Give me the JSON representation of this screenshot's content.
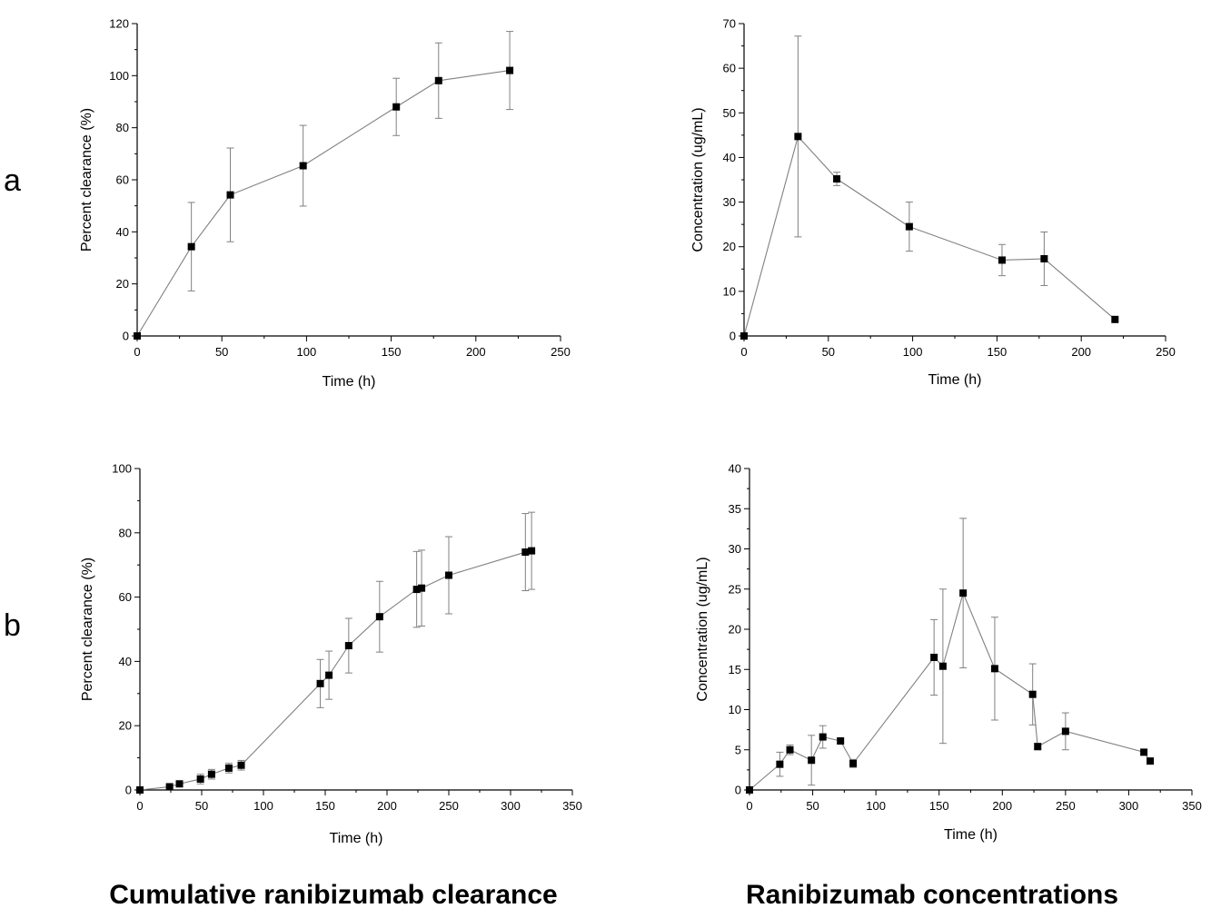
{
  "row_labels": [
    "a",
    "b"
  ],
  "captions": {
    "left": "Cumulative ranibizumab clearance",
    "right": "Ranibizumab concentrations"
  },
  "colors": {
    "line": "#808080",
    "marker": "#000000",
    "axis": "#000000"
  },
  "chart_data": [
    {
      "type": "line",
      "xlabel": "Time (h)",
      "ylabel": "Percent clearance (%)",
      "xlim": [
        0,
        250
      ],
      "ylim": [
        0,
        120
      ],
      "xticks": [
        0,
        50,
        100,
        150,
        200,
        250
      ],
      "yticks": [
        0,
        20,
        40,
        60,
        80,
        100,
        120
      ],
      "grid": false,
      "x": [
        0,
        32,
        55,
        98,
        153,
        178,
        220
      ],
      "y": [
        0,
        34.3,
        54.2,
        65.4,
        88.0,
        98.1,
        102.0
      ],
      "err": [
        0,
        17,
        18,
        15.5,
        11,
        14.5,
        15
      ]
    },
    {
      "type": "line",
      "xlabel": "Time (h)",
      "ylabel": "Concentration (ug/mL)",
      "xlim": [
        0,
        250
      ],
      "ylim": [
        0,
        70
      ],
      "xticks": [
        0,
        50,
        100,
        150,
        200,
        250
      ],
      "yticks": [
        0,
        10,
        20,
        30,
        40,
        50,
        60,
        70
      ],
      "grid": false,
      "x": [
        0,
        32,
        55,
        98,
        153,
        178,
        220
      ],
      "y": [
        0,
        44.7,
        35.2,
        24.5,
        17.0,
        17.3,
        3.7
      ],
      "err": [
        0,
        22.5,
        1.5,
        5.5,
        3.5,
        6,
        0
      ]
    },
    {
      "type": "line",
      "xlabel": "Time (h)",
      "ylabel": "Percent clearance (%)",
      "xlim": [
        0,
        350
      ],
      "ylim": [
        0,
        100
      ],
      "xticks": [
        0,
        50,
        100,
        150,
        200,
        250,
        300,
        350
      ],
      "yticks": [
        0,
        20,
        40,
        60,
        80,
        100
      ],
      "grid": false,
      "x": [
        0,
        24,
        32,
        49,
        58,
        72,
        82,
        146,
        153,
        169,
        194,
        224,
        228,
        250,
        312,
        317
      ],
      "y": [
        0,
        1.0,
        1.9,
        3.4,
        4.9,
        6.8,
        7.7,
        33.1,
        35.7,
        44.9,
        53.9,
        62.4,
        62.8,
        66.8,
        74.0,
        74.4
      ],
      "err": [
        0,
        0.5,
        0.8,
        1.5,
        1.5,
        1.5,
        1.5,
        7.5,
        7.5,
        8.5,
        11,
        11.8,
        11.8,
        12,
        12,
        12
      ]
    },
    {
      "type": "line",
      "xlabel": "Time (h)",
      "ylabel": "Concentration (ug/mL)",
      "xlim": [
        0,
        350
      ],
      "ylim": [
        0,
        40
      ],
      "xticks": [
        0,
        50,
        100,
        150,
        200,
        250,
        300,
        350
      ],
      "yticks": [
        0,
        5,
        10,
        15,
        20,
        25,
        30,
        35,
        40
      ],
      "grid": false,
      "x": [
        0,
        24,
        32,
        49,
        58,
        72,
        82,
        146,
        153,
        169,
        194,
        224,
        228,
        250,
        312,
        317
      ],
      "y": [
        0,
        3.2,
        5.0,
        3.7,
        6.6,
        6.1,
        3.3,
        16.5,
        15.4,
        24.5,
        15.1,
        11.9,
        5.4,
        7.3,
        4.7,
        3.6
      ],
      "err": [
        0,
        1.5,
        0.6,
        3.1,
        1.4,
        0,
        0.5,
        4.7,
        9.6,
        9.3,
        6.4,
        3.8,
        0.4,
        2.3,
        0,
        0
      ]
    }
  ]
}
